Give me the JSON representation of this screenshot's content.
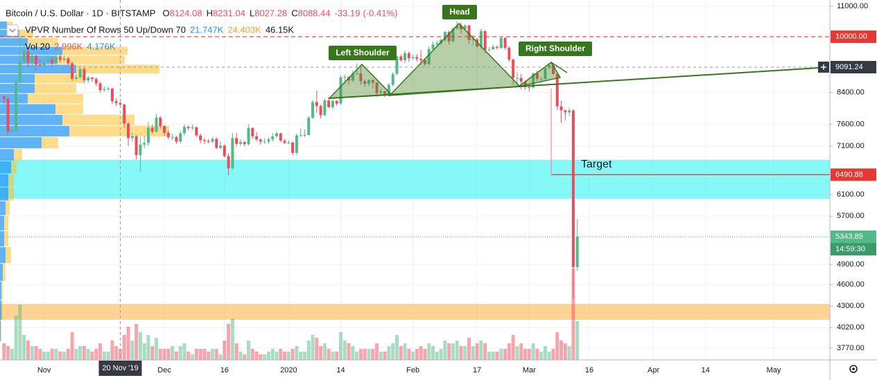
{
  "chart_data": {
    "type": "candlestick",
    "legend": {
      "symbol": "Bitcoin / U.S. Dollar · 1D · BITSTAMP",
      "ohlc_keys": [
        "O",
        "H",
        "L",
        "C"
      ],
      "change": -33.19,
      "change_pct": {
        "value": -0.41,
        "label": "(-0.41%)"
      }
    },
    "indicators": [
      {
        "name": "VPVR Number Of Rows 50 Up/Down 70",
        "values": [
          {
            "value": 21747,
            "label": "21.747K",
            "color": "#2196f3"
          },
          {
            "value": 24403,
            "label": "24.403K",
            "color": "#f0a030"
          },
          {
            "value": 46150,
            "label": "46.15K",
            "color": "#131722"
          }
        ]
      },
      {
        "name": "Vol 20",
        "values": [
          {
            "value": 2996,
            "label": "2.996K",
            "color": "#ef5350"
          },
          {
            "value": 4176,
            "label": "4.176K",
            "color": "#2196f3"
          }
        ]
      }
    ],
    "annotations": [
      {
        "text": "Head"
      },
      {
        "text": "Left Shoulder"
      },
      {
        "text": "Right Shoulder"
      },
      {
        "text": "Target"
      }
    ],
    "up_color": "#53b987",
    "down_color": "#eb4d5c",
    "volume_up_color": "rgba(83,185,135,0.5)",
    "volume_down_color": "rgba(235,77,92,0.5)",
    "log_scale": true,
    "grid": true,
    "xlim": [
      "2019-10-21",
      "2020-05-15"
    ],
    "xticks": [
      {
        "value": "2019-11-01",
        "label": "Nov"
      },
      {
        "value": "2019-12-01",
        "label": "Dec"
      },
      {
        "value": "2019-12-16",
        "label": "16"
      },
      {
        "value": "2020-01-01",
        "label": "2020"
      },
      {
        "value": "2020-01-14",
        "label": "14"
      },
      {
        "value": "2020-02-01",
        "label": "Feb"
      },
      {
        "value": "2020-02-17",
        "label": "17"
      },
      {
        "value": "2020-03-01",
        "label": "Mar"
      },
      {
        "value": "2020-03-16",
        "label": "16"
      },
      {
        "value": "2020-04-01",
        "label": "Apr"
      },
      {
        "value": "2020-04-14",
        "label": "14"
      },
      {
        "value": "2020-05-01",
        "label": "May"
      }
    ],
    "ylim": [
      3633,
      11220
    ],
    "yticks": [
      {
        "value": 11000,
        "label": "11000.00"
      },
      {
        "value": 8400,
        "label": "8400.00"
      },
      {
        "value": 7600,
        "label": "7600.00"
      },
      {
        "value": 7100,
        "label": "7100.00"
      },
      {
        "value": 6100,
        "label": "6100.00"
      },
      {
        "value": 5700,
        "label": "5700.00"
      },
      {
        "value": 4900,
        "label": "4900.00"
      },
      {
        "value": 4600,
        "label": "4600.00"
      },
      {
        "value": 4300,
        "label": "4300.00"
      },
      {
        "value": 4020,
        "label": "4020.00"
      },
      {
        "value": 3770,
        "label": "3770.00"
      }
    ],
    "zones": [
      {
        "from": 6020,
        "to": 6800,
        "color": "rgba(0,240,240,0.47)"
      },
      {
        "from": 4120,
        "to": 4330,
        "color": "rgba(255,160,20,0.45)"
      }
    ],
    "price_lines": [
      {
        "value": 10000,
        "label": "10000.00",
        "color": "#e53935",
        "style": "dashed"
      },
      {
        "value": 6490.88,
        "color": "#e53935",
        "style": "solid"
      },
      {
        "value": 5343.89,
        "color": "#53b987",
        "style": "dotted",
        "countdown": "14:59:30",
        "countdown_color": "#3c9a6c"
      }
    ],
    "crosshair": {
      "x": "2019-11-20",
      "label": "20 Nov '19",
      "price": 9091.24,
      "color": "#363a45"
    },
    "vpvr": {
      "up_color": "rgba(33,150,243,0.72)",
      "down_color": "rgba(251,192,45,0.55)",
      "rows": [
        3850,
        4116,
        4382,
        4648,
        4914,
        5180,
        5446,
        5712,
        5978,
        6244,
        6510,
        6776,
        7042,
        7308,
        7574,
        7840,
        8106,
        8372,
        8638,
        8904,
        9170,
        9436,
        9702,
        9968,
        10234
      ],
      "up": [
        0.5,
        1,
        1,
        2,
        4,
        3,
        3,
        4,
        6,
        6,
        8,
        10,
        30,
        50,
        45,
        40,
        20,
        25,
        25,
        55,
        40,
        45,
        20,
        14,
        5
      ],
      "down": [
        0.5,
        1,
        1,
        2,
        4,
        3,
        3,
        3,
        4,
        4,
        4,
        6,
        12,
        72,
        52,
        20,
        40,
        30,
        35,
        60,
        50,
        47,
        22,
        10,
        4
      ]
    },
    "x": [
      "2019-10-22",
      "2019-10-23",
      "2019-10-24",
      "2019-10-25",
      "2019-10-26",
      "2019-10-27",
      "2019-10-28",
      "2019-10-29",
      "2019-10-30",
      "2019-10-31",
      "2019-11-01",
      "2019-11-02",
      "2019-11-03",
      "2019-11-04",
      "2019-11-05",
      "2019-11-06",
      "2019-11-07",
      "2019-11-08",
      "2019-11-09",
      "2019-11-10",
      "2019-11-11",
      "2019-11-12",
      "2019-11-13",
      "2019-11-14",
      "2019-11-15",
      "2019-11-16",
      "2019-11-17",
      "2019-11-18",
      "2019-11-19",
      "2019-11-20",
      "2019-11-21",
      "2019-11-22",
      "2019-11-23",
      "2019-11-24",
      "2019-11-25",
      "2019-11-26",
      "2019-11-27",
      "2019-11-28",
      "2019-11-29",
      "2019-11-30",
      "2019-12-01",
      "2019-12-02",
      "2019-12-03",
      "2019-12-04",
      "2019-12-05",
      "2019-12-06",
      "2019-12-07",
      "2019-12-08",
      "2019-12-09",
      "2019-12-10",
      "2019-12-11",
      "2019-12-12",
      "2019-12-13",
      "2019-12-14",
      "2019-12-15",
      "2019-12-16",
      "2019-12-17",
      "2019-12-18",
      "2019-12-19",
      "2019-12-20",
      "2019-12-21",
      "2019-12-22",
      "2019-12-23",
      "2019-12-24",
      "2019-12-25",
      "2019-12-26",
      "2019-12-27",
      "2019-12-28",
      "2019-12-29",
      "2019-12-30",
      "2019-12-31",
      "2020-01-01",
      "2020-01-02",
      "2020-01-03",
      "2020-01-04",
      "2020-01-05",
      "2020-01-06",
      "2020-01-07",
      "2020-01-08",
      "2020-01-09",
      "2020-01-10",
      "2020-01-11",
      "2020-01-12",
      "2020-01-13",
      "2020-01-14",
      "2020-01-15",
      "2020-01-16",
      "2020-01-17",
      "2020-01-18",
      "2020-01-19",
      "2020-01-20",
      "2020-01-21",
      "2020-01-22",
      "2020-01-23",
      "2020-01-24",
      "2020-01-25",
      "2020-01-26",
      "2020-01-27",
      "2020-01-28",
      "2020-01-29",
      "2020-01-30",
      "2020-01-31",
      "2020-02-01",
      "2020-02-02",
      "2020-02-03",
      "2020-02-04",
      "2020-02-05",
      "2020-02-06",
      "2020-02-07",
      "2020-02-08",
      "2020-02-09",
      "2020-02-10",
      "2020-02-11",
      "2020-02-12",
      "2020-02-13",
      "2020-02-14",
      "2020-02-15",
      "2020-02-16",
      "2020-02-17",
      "2020-02-18",
      "2020-02-19",
      "2020-02-20",
      "2020-02-21",
      "2020-02-22",
      "2020-02-23",
      "2020-02-24",
      "2020-02-25",
      "2020-02-26",
      "2020-02-27",
      "2020-02-28",
      "2020-02-29",
      "2020-03-01",
      "2020-03-02",
      "2020-03-03",
      "2020-03-04",
      "2020-03-05",
      "2020-03-06",
      "2020-03-07",
      "2020-03-08",
      "2020-03-09",
      "2020-03-10",
      "2020-03-11",
      "2020-03-12",
      "2020-03-13"
    ],
    "open": [
      8300,
      8230,
      7430,
      7470,
      8660,
      9260,
      9550,
      9220,
      9420,
      9170,
      9150,
      9250,
      9310,
      9200,
      9400,
      9300,
      9340,
      9200,
      8770,
      8810,
      9040,
      8720,
      8800,
      8760,
      8640,
      8460,
      8490,
      8500,
      8170,
      8124.08,
      8088.44,
      7620,
      7280,
      7320,
      6900,
      7130,
      7170,
      7520,
      7430,
      7760,
      7560,
      7400,
      7300,
      7300,
      7200,
      7390,
      7540,
      7510,
      7530,
      7340,
      7230,
      7210,
      7200,
      7260,
      7060,
      7110,
      6880,
      6620,
      7280,
      7150,
      7190,
      7140,
      7510,
      7320,
      7250,
      7200,
      7200,
      7250,
      7320,
      7390,
      7220,
      7170,
      7180,
      6950,
      7340,
      7350,
      7350,
      7760,
      8150,
      8050,
      7820,
      8190,
      8020,
      8180,
      8110,
      8810,
      8820,
      8720,
      8910,
      8910,
      8700,
      8630,
      8730,
      8660,
      8390,
      8430,
      8340,
      8600,
      8900,
      9400,
      9290,
      9500,
      9350,
      9380,
      9330,
      9290,
      9180,
      9620,
      9760,
      9800,
      9900,
      10150,
      9860,
      10260,
      10360,
      10240,
      10360,
      9900,
      9920,
      9700,
      10180,
      9600,
      9610,
      9690,
      9660,
      9960,
      9660,
      9310,
      8790,
      8790,
      8690,
      8540,
      8530,
      8910,
      8760,
      8760,
      9070,
      9150,
      8900,
      8040,
      7940,
      7890,
      7940,
      4860
    ],
    "high": [
      8330,
      8270,
      7530,
      8800,
      10000,
      9800,
      9630,
      9520,
      9450,
      9320,
      9300,
      9400,
      9380,
      9480,
      9450,
      9420,
      9380,
      9250,
      8880,
      9120,
      9070,
      8850,
      8820,
      8800,
      8680,
      8560,
      8550,
      8520,
      8250,
      8231.04,
      8100,
      7650,
      7400,
      7350,
      7300,
      7330,
      7650,
      7600,
      7850,
      7800,
      7580,
      7450,
      7380,
      7330,
      7450,
      7600,
      7570,
      7600,
      7550,
      7380,
      7280,
      7260,
      7300,
      7290,
      7200,
      7140,
      6940,
      7400,
      7400,
      7250,
      7210,
      7600,
      7530,
      7420,
      7270,
      7280,
      7300,
      7400,
      7430,
      7400,
      7260,
      7230,
      7200,
      7390,
      7500,
      7480,
      7800,
      8200,
      8450,
      8080,
      8240,
      8280,
      8200,
      8200,
      8870,
      8880,
      8830,
      9000,
      9200,
      9150,
      8750,
      8760,
      8760,
      8680,
      8500,
      8450,
      8650,
      8950,
      9420,
      9450,
      9580,
      9550,
      9450,
      9470,
      9600,
      9350,
      9700,
      9850,
      9880,
      9950,
      10180,
      10200,
      10300,
      10500,
      10460,
      10400,
      10380,
      10050,
      9960,
      10250,
      10200,
      9680,
      9750,
      9720,
      10000,
      9990,
      9700,
      9330,
      8960,
      8900,
      8700,
      8630,
      8950,
      8990,
      8820,
      9110,
      9190,
      9160,
      8900,
      8180,
      7960,
      8000,
      7970,
      5650
    ],
    "low": [
      8100,
      7350,
      7380,
      7440,
      8600,
      9200,
      9100,
      9050,
      9000,
      9070,
      9080,
      9200,
      9120,
      9150,
      9220,
      9250,
      9150,
      8700,
      8720,
      8760,
      8640,
      8650,
      8680,
      8570,
      8400,
      8410,
      8430,
      8100,
      8050,
      8027.28,
      7520,
      7100,
      7200,
      6800,
      6550,
      7050,
      7100,
      7380,
      7400,
      7500,
      7330,
      7250,
      7230,
      7150,
      7160,
      7340,
      7460,
      7470,
      7300,
      7160,
      7150,
      7160,
      7170,
      7040,
      7020,
      6850,
      6480,
      6600,
      7100,
      7100,
      7100,
      7120,
      7260,
      7200,
      7130,
      7150,
      7150,
      7200,
      7290,
      7190,
      7140,
      7140,
      6900,
      6900,
      7300,
      7300,
      7340,
      7730,
      7880,
      7740,
      7800,
      8000,
      7980,
      8060,
      8080,
      8620,
      8600,
      8680,
      8900,
      8600,
      8550,
      8560,
      8500,
      8290,
      8300,
      8280,
      8300,
      8560,
      8870,
      9250,
      9200,
      9240,
      9300,
      9250,
      9160,
      9120,
      9150,
      9550,
      9700,
      9750,
      9850,
      9750,
      9830,
      10230,
      10100,
      10200,
      9780,
      9720,
      9640,
      9620,
      9500,
      9550,
      9600,
      9600,
      9620,
      9600,
      9250,
      8600,
      8550,
      8480,
      8470,
      8420,
      8500,
      8700,
      8670,
      8750,
      9020,
      8870,
      7950,
      7630,
      7700,
      7800,
      4400,
      4800
    ],
    "close": [
      8230,
      7430,
      7470,
      8660,
      9260,
      9550,
      9220,
      9420,
      9170,
      9150,
      9250,
      9310,
      9200,
      9400,
      9300,
      9340,
      9200,
      8770,
      8810,
      9040,
      8720,
      8800,
      8760,
      8640,
      8460,
      8490,
      8500,
      8170,
      8124.08,
      8088.44,
      7620,
      7280,
      7320,
      6900,
      7130,
      7170,
      7520,
      7430,
      7760,
      7560,
      7400,
      7300,
      7300,
      7200,
      7390,
      7540,
      7510,
      7530,
      7340,
      7230,
      7210,
      7200,
      7260,
      7060,
      7110,
      6880,
      6620,
      7280,
      7150,
      7190,
      7140,
      7510,
      7320,
      7250,
      7200,
      7200,
      7250,
      7320,
      7390,
      7220,
      7170,
      7180,
      6950,
      7340,
      7350,
      7350,
      7760,
      8150,
      8050,
      7820,
      8190,
      8020,
      8180,
      8110,
      8810,
      8820,
      8720,
      8910,
      8910,
      8700,
      8630,
      8730,
      8660,
      8390,
      8430,
      8340,
      8600,
      8900,
      9400,
      9290,
      9500,
      9350,
      9380,
      9330,
      9290,
      9180,
      9620,
      9760,
      9800,
      9900,
      10150,
      9860,
      10260,
      10360,
      10240,
      10360,
      9900,
      9920,
      9700,
      10180,
      9600,
      9610,
      9690,
      9660,
      9960,
      9660,
      9310,
      8790,
      8790,
      8690,
      8540,
      8530,
      8910,
      8760,
      8760,
      9070,
      9150,
      8900,
      8040,
      7940,
      7890,
      7940,
      4860,
      5344
    ],
    "volume": [
      6,
      5,
      4,
      16,
      20,
      9,
      7,
      5,
      5,
      4,
      3,
      3,
      4,
      4,
      3,
      3,
      4,
      10,
      4,
      5,
      5,
      4,
      3,
      4,
      6,
      3,
      3,
      7,
      5,
      4,
      9,
      12,
      7,
      13,
      10,
      6,
      9,
      5,
      8,
      4,
      4,
      4,
      5,
      3,
      5,
      6,
      3,
      2,
      4,
      4,
      4,
      3,
      4,
      4,
      2,
      7,
      13,
      15,
      6,
      3,
      2,
      7,
      4,
      3,
      2,
      2,
      3,
      4,
      3,
      4,
      3,
      3,
      4,
      5,
      3,
      3,
      7,
      9,
      8,
      5,
      6,
      4,
      3,
      3,
      10,
      7,
      6,
      5,
      3,
      4,
      4,
      4,
      4,
      6,
      3,
      3,
      5,
      6,
      9,
      5,
      6,
      4,
      3,
      4,
      5,
      4,
      6,
      5,
      3,
      4,
      7,
      6,
      6,
      7,
      5,
      5,
      8,
      5,
      6,
      7,
      6,
      3,
      3,
      3,
      4,
      4,
      6,
      9,
      5,
      6,
      4,
      4,
      6,
      4,
      3,
      5,
      3,
      4,
      10,
      7,
      6,
      5,
      33,
      14
    ]
  }
}
